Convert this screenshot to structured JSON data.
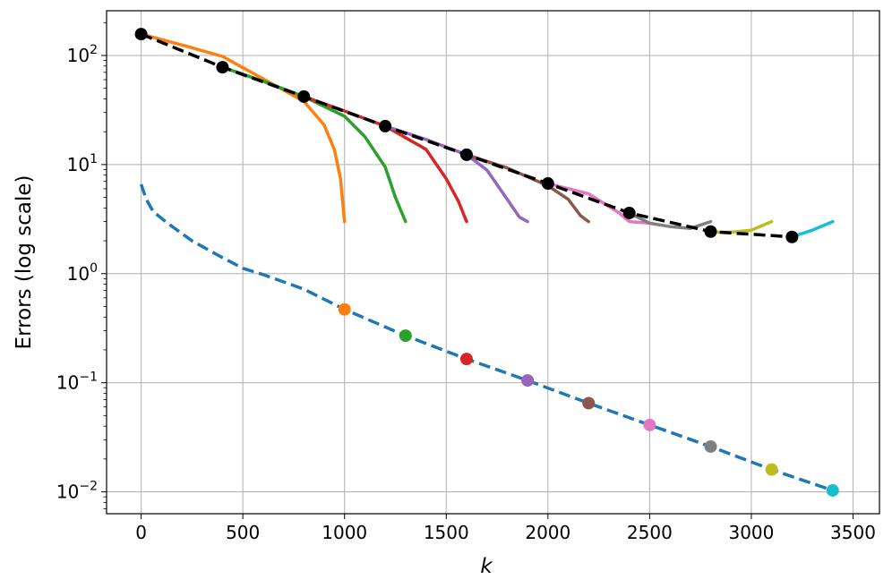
{
  "chart_data": {
    "type": "line",
    "title": "",
    "xlabel": "k",
    "ylabel": "Errors (log scale)",
    "xlim": [
      -170,
      3630
    ],
    "ylim": [
      0.0063,
      257
    ],
    "yscale": "log",
    "grid": true,
    "legend": "none",
    "xticks": [
      0,
      500,
      1000,
      1500,
      2000,
      2500,
      3000,
      3500
    ],
    "xtick_labels": [
      "0",
      "500",
      "1000",
      "1500",
      "2000",
      "2500",
      "3000",
      "3500"
    ],
    "yticks": [
      100,
      10,
      1,
      0.1,
      0.01
    ],
    "ytick_labels": [
      {
        "base": "10",
        "exp": "2"
      },
      {
        "base": "10",
        "exp": "1"
      },
      {
        "base": "10",
        "exp": "0"
      },
      {
        "base": "10",
        "exp": "−1"
      },
      {
        "base": "10",
        "exp": "−2"
      }
    ],
    "series": [
      {
        "color": "#1f77b4",
        "style": "dashed",
        "x": [
          0,
          25,
          60,
          130,
          250,
          400,
          500,
          600,
          800,
          1000,
          1300,
          1600,
          1900,
          2200,
          2500,
          2800,
          3100,
          3400
        ],
        "y": [
          6.6,
          4.8,
          3.7,
          2.9,
          2.0,
          1.4,
          1.12,
          0.98,
          0.72,
          0.47,
          0.27,
          0.165,
          0.105,
          0.065,
          0.041,
          0.026,
          0.016,
          0.0103
        ]
      },
      {
        "color": "#1f77b4",
        "style": "markers-colored",
        "x": [
          1000,
          1300,
          1600,
          1900,
          2200,
          2500,
          2800,
          3100,
          3400
        ],
        "y": [
          0.47,
          0.27,
          0.165,
          0.105,
          0.065,
          0.041,
          0.026,
          0.016,
          0.0103
        ],
        "marker_colors": [
          "#ff7f0e",
          "#2ca02c",
          "#d62728",
          "#9467bd",
          "#8c564b",
          "#e377c2",
          "#7f7f7f",
          "#bcbd22",
          "#17becf"
        ]
      },
      {
        "color": "#ff7f0e",
        "style": "solid",
        "x": [
          0,
          200,
          400,
          600,
          800,
          900,
          950,
          980,
          1000
        ],
        "y": [
          157,
          125,
          98,
          61,
          38,
          23,
          13.7,
          7.4,
          3.0
        ]
      },
      {
        "color": "#2ca02c",
        "style": "solid",
        "x": [
          400,
          600,
          800,
          1000,
          1100,
          1200,
          1250,
          1300
        ],
        "y": [
          78,
          58,
          42,
          27.7,
          18,
          9.5,
          5.0,
          3.0
        ]
      },
      {
        "color": "#d62728",
        "style": "solid",
        "x": [
          800,
          1000,
          1200,
          1400,
          1500,
          1560,
          1600
        ],
        "y": [
          42,
          31,
          22.5,
          13.8,
          7.4,
          4.6,
          3.0
        ]
      },
      {
        "color": "#9467bd",
        "style": "solid",
        "x": [
          1200,
          1400,
          1600,
          1700,
          1800,
          1860,
          1900
        ],
        "y": [
          22.5,
          17,
          12.3,
          8.9,
          4.8,
          3.3,
          3.0
        ]
      },
      {
        "color": "#8c564b",
        "style": "solid",
        "x": [
          1600,
          1800,
          2000,
          2100,
          2160,
          2200
        ],
        "y": [
          12.3,
          9.3,
          6.4,
          4.8,
          3.4,
          3.0
        ]
      },
      {
        "color": "#e377c2",
        "style": "solid",
        "x": [
          2000,
          2200,
          2350,
          2400,
          2500
        ],
        "y": [
          6.7,
          5.4,
          3.6,
          3.0,
          2.9
        ]
      },
      {
        "color": "#7f7f7f",
        "style": "solid",
        "x": [
          2400,
          2500,
          2600,
          2700,
          2800
        ],
        "y": [
          3.6,
          2.9,
          2.7,
          2.6,
          3.0
        ]
      },
      {
        "color": "#bcbd22",
        "style": "solid",
        "x": [
          2800,
          2900,
          3000,
          3100
        ],
        "y": [
          2.4,
          2.4,
          2.5,
          3.0
        ]
      },
      {
        "color": "#17becf",
        "style": "solid",
        "x": [
          3200,
          3300,
          3400
        ],
        "y": [
          2.17,
          2.5,
          3.0
        ]
      },
      {
        "color": "#000000",
        "style": "dashed-markers",
        "x": [
          0,
          400,
          800,
          1200,
          1600,
          2000,
          2400,
          2800,
          3200
        ],
        "y": [
          157,
          78,
          42,
          22.5,
          12.3,
          6.7,
          3.6,
          2.43,
          2.17
        ]
      }
    ]
  }
}
